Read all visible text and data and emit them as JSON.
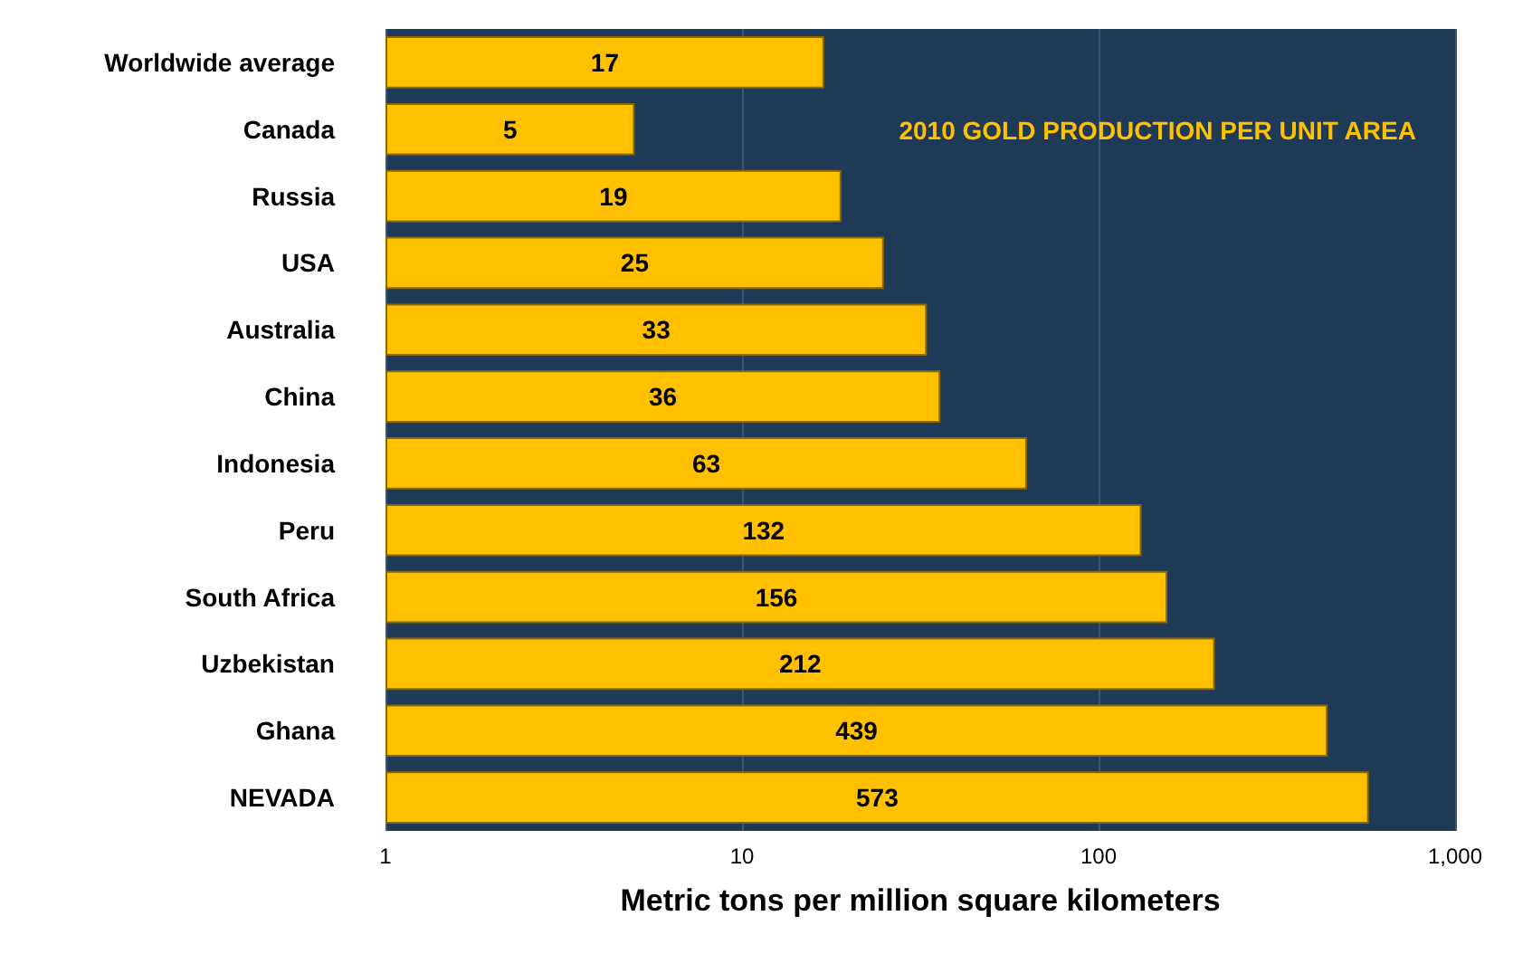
{
  "chart_data": {
    "type": "bar",
    "orientation": "horizontal",
    "title": "2010 GOLD PRODUCTION PER UNIT AREA",
    "xlabel": "Metric tons per million square kilometers",
    "categories": [
      "Worldwide average",
      "Canada",
      "Russia",
      "USA",
      "Australia",
      "China",
      "Indonesia",
      "Peru",
      "South Africa",
      "Uzbekistan",
      "Ghana",
      "NEVADA"
    ],
    "values": [
      17,
      5,
      19,
      25,
      33,
      36,
      63,
      132,
      156,
      212,
      439,
      573
    ],
    "color": "#ffc000",
    "data_labels": true,
    "log": "x",
    "grid": "x",
    "xlim": [
      1,
      1000
    ],
    "xticks": [
      1,
      10,
      100,
      {
        "value": 1000,
        "label": "1,000"
      }
    ]
  }
}
